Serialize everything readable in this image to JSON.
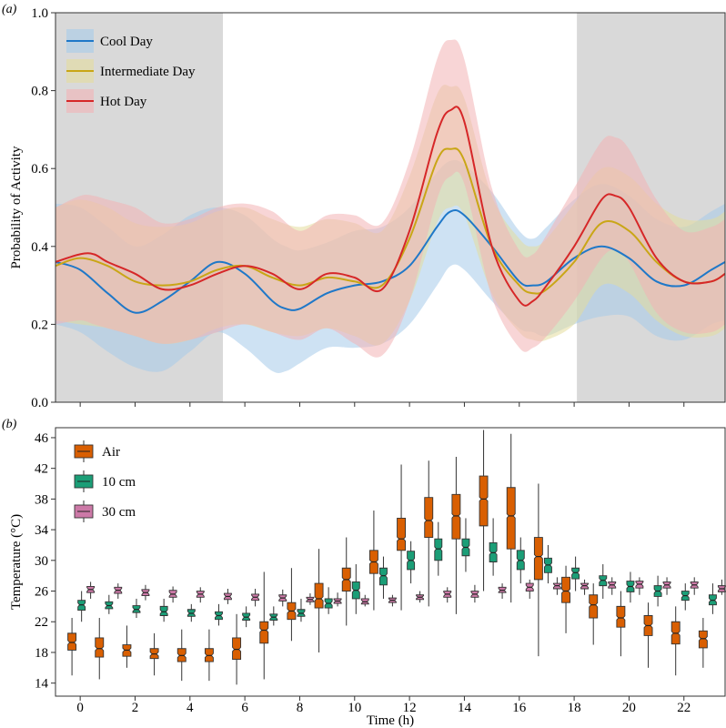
{
  "chart_data": [
    {
      "panel_label": "(a)",
      "type": "area",
      "title": "",
      "xlabel": "",
      "ylabel": "Probability of Activity",
      "xlim": [
        -0.9,
        23.5
      ],
      "ylim": [
        0,
        1.0
      ],
      "yticks": [
        0.0,
        0.2,
        0.4,
        0.6,
        0.8,
        1.0
      ],
      "ytick_labels": [
        "0.0",
        "0.2",
        "0.4",
        "0.6",
        "0.8",
        "1.0"
      ],
      "xticks": [
        0,
        2,
        4,
        6,
        8,
        10,
        12,
        14,
        16,
        18,
        20,
        22
      ],
      "night_shading": [
        [
          -0.9,
          5.2
        ],
        [
          18.1,
          23.5
        ]
      ],
      "night_color": "#d9d9d9",
      "legend_position": "top-left",
      "series": [
        {
          "name": "Cool Day",
          "color": "#1f78c8",
          "band_color": "#a6cbea",
          "x": [
            -0.9,
            0,
            1,
            2,
            3,
            4,
            5,
            6,
            7,
            7.5,
            8,
            9,
            10,
            11,
            12,
            13,
            13.5,
            14,
            15,
            16,
            16.5,
            17,
            18,
            19,
            20,
            21,
            22,
            23,
            23.5
          ],
          "mean": [
            0.36,
            0.34,
            0.28,
            0.23,
            0.26,
            0.31,
            0.36,
            0.33,
            0.26,
            0.24,
            0.24,
            0.28,
            0.3,
            0.31,
            0.35,
            0.45,
            0.49,
            0.48,
            0.4,
            0.31,
            0.3,
            0.31,
            0.37,
            0.4,
            0.37,
            0.31,
            0.3,
            0.34,
            0.36
          ],
          "lower": [
            0.2,
            0.18,
            0.13,
            0.09,
            0.08,
            0.13,
            0.18,
            0.14,
            0.08,
            0.08,
            0.1,
            0.14,
            0.14,
            0.15,
            0.2,
            0.3,
            0.35,
            0.34,
            0.26,
            0.19,
            0.18,
            0.17,
            0.2,
            0.22,
            0.22,
            0.17,
            0.16,
            0.2,
            0.21
          ],
          "upper": [
            0.51,
            0.5,
            0.45,
            0.4,
            0.43,
            0.48,
            0.5,
            0.48,
            0.42,
            0.4,
            0.39,
            0.41,
            0.44,
            0.45,
            0.5,
            0.59,
            0.62,
            0.61,
            0.54,
            0.44,
            0.42,
            0.45,
            0.52,
            0.56,
            0.53,
            0.47,
            0.45,
            0.49,
            0.51
          ]
        },
        {
          "name": "Intermediate Day",
          "color": "#c9a616",
          "band_color": "#e4dc9c",
          "x": [
            -0.9,
            0,
            1,
            2,
            3,
            4,
            5,
            6,
            7,
            8,
            9,
            10,
            11,
            12,
            13,
            13.5,
            14,
            15,
            16,
            16.5,
            17,
            18,
            19,
            20,
            21,
            22,
            23,
            23.5
          ],
          "mean": [
            0.35,
            0.37,
            0.35,
            0.31,
            0.3,
            0.31,
            0.34,
            0.35,
            0.32,
            0.3,
            0.32,
            0.31,
            0.3,
            0.42,
            0.62,
            0.65,
            0.62,
            0.4,
            0.3,
            0.28,
            0.29,
            0.36,
            0.46,
            0.44,
            0.36,
            0.31,
            0.31,
            0.33
          ],
          "lower": [
            0.21,
            0.2,
            0.19,
            0.17,
            0.15,
            0.16,
            0.19,
            0.2,
            0.18,
            0.17,
            0.19,
            0.17,
            0.15,
            0.26,
            0.46,
            0.5,
            0.48,
            0.28,
            0.18,
            0.16,
            0.16,
            0.2,
            0.3,
            0.28,
            0.21,
            0.17,
            0.17,
            0.19
          ],
          "upper": [
            0.5,
            0.52,
            0.5,
            0.46,
            0.45,
            0.46,
            0.49,
            0.5,
            0.47,
            0.45,
            0.47,
            0.46,
            0.44,
            0.58,
            0.79,
            0.81,
            0.78,
            0.53,
            0.42,
            0.4,
            0.42,
            0.51,
            0.6,
            0.58,
            0.51,
            0.47,
            0.47,
            0.49
          ]
        },
        {
          "name": "Hot Day",
          "color": "#d62728",
          "band_color": "#f2b3b5",
          "x": [
            -0.9,
            0,
            0.5,
            1,
            2,
            3,
            4,
            5,
            6,
            7,
            8,
            9,
            10,
            11,
            12,
            13,
            13.5,
            14,
            15,
            16,
            16.5,
            17,
            18,
            19,
            19.5,
            20,
            21,
            22,
            23,
            23.5
          ],
          "mean": [
            0.36,
            0.38,
            0.38,
            0.36,
            0.33,
            0.29,
            0.3,
            0.33,
            0.35,
            0.33,
            0.29,
            0.33,
            0.32,
            0.29,
            0.44,
            0.69,
            0.75,
            0.72,
            0.4,
            0.26,
            0.26,
            0.3,
            0.4,
            0.52,
            0.53,
            0.5,
            0.37,
            0.31,
            0.31,
            0.33
          ],
          "lower": [
            0.2,
            0.21,
            0.2,
            0.19,
            0.17,
            0.15,
            0.16,
            0.18,
            0.2,
            0.18,
            0.16,
            0.19,
            0.15,
            0.12,
            0.26,
            0.52,
            0.58,
            0.56,
            0.27,
            0.14,
            0.14,
            0.17,
            0.26,
            0.37,
            0.39,
            0.36,
            0.23,
            0.18,
            0.18,
            0.2
          ],
          "upper": [
            0.5,
            0.53,
            0.53,
            0.52,
            0.5,
            0.46,
            0.47,
            0.5,
            0.51,
            0.49,
            0.44,
            0.48,
            0.48,
            0.46,
            0.62,
            0.88,
            0.93,
            0.88,
            0.55,
            0.39,
            0.38,
            0.43,
            0.55,
            0.67,
            0.68,
            0.65,
            0.52,
            0.44,
            0.45,
            0.47
          ]
        }
      ]
    },
    {
      "panel_label": "(b)",
      "type": "boxplot",
      "title": "",
      "xlabel": "Time (h)",
      "ylabel": "Temperature (°C)",
      "xlim": [
        -0.9,
        23.5
      ],
      "ylim": [
        12.3,
        47.3
      ],
      "yticks": [
        14,
        18,
        22,
        26,
        30,
        34,
        38,
        42,
        46
      ],
      "ytick_labels": [
        "14",
        "18",
        "22",
        "26",
        "30",
        "34",
        "38",
        "42",
        "46"
      ],
      "xticks": [
        0,
        2,
        4,
        6,
        8,
        10,
        12,
        14,
        16,
        18,
        20,
        22
      ],
      "xtick_labels": [
        "0",
        "2",
        "4",
        "6",
        "8",
        "10",
        "12",
        "14",
        "16",
        "18",
        "20",
        "22"
      ],
      "legend_position": "top-left",
      "series": [
        {
          "name": "Air",
          "color": "#d95f02",
          "offset": -0.3,
          "hours": [
            0,
            1,
            2,
            3,
            4,
            5,
            6,
            7,
            8,
            9,
            10,
            11,
            12,
            13,
            14,
            15,
            16,
            17,
            18,
            19,
            20,
            21,
            22,
            23
          ],
          "stats": [
            [
              15.0,
              18.3,
              19.3,
              20.5,
              22.5
            ],
            [
              14.5,
              17.4,
              18.5,
              19.9,
              22.5
            ],
            [
              16.0,
              17.5,
              18.3,
              19.0,
              21.5
            ],
            [
              15.0,
              17.2,
              17.8,
              18.5,
              20.5
            ],
            [
              14.3,
              16.8,
              17.6,
              18.5,
              21.0
            ],
            [
              14.3,
              16.8,
              17.6,
              18.5,
              21.0
            ],
            [
              13.8,
              17.1,
              18.4,
              19.9,
              23.0
            ],
            [
              14.5,
              19.2,
              20.9,
              22.0,
              28.5
            ],
            [
              19.5,
              22.3,
              23.4,
              24.5,
              29.0
            ],
            [
              18.0,
              23.8,
              25.0,
              27.0,
              31.5
            ],
            [
              21.5,
              26.0,
              27.5,
              29.0,
              33.0
            ],
            [
              23.5,
              28.3,
              29.8,
              31.3,
              36.5
            ],
            [
              23.5,
              31.3,
              32.8,
              35.5,
              42.5
            ],
            [
              24.0,
              33.0,
              35.2,
              38.2,
              43.0
            ],
            [
              23.0,
              32.8,
              35.8,
              38.6,
              43.5
            ],
            [
              26.0,
              34.5,
              38.0,
              41.0,
              47.0
            ],
            [
              24.5,
              31.5,
              35.8,
              39.5,
              46.5
            ],
            [
              17.5,
              27.5,
              30.5,
              33.0,
              40.0
            ],
            [
              20.5,
              24.5,
              26.0,
              27.8,
              29.3
            ],
            [
              19.0,
              22.5,
              24.2,
              25.5,
              27.0
            ],
            [
              17.5,
              21.3,
              22.5,
              24.0,
              26.0
            ],
            [
              16.0,
              20.2,
              21.5,
              22.8,
              24.5
            ],
            [
              15.0,
              19.1,
              20.5,
              22.0,
              24.0
            ],
            [
              16.0,
              18.6,
              19.8,
              20.8,
              22.5
            ]
          ]
        },
        {
          "name": "10 cm",
          "color": "#1b9e77",
          "offset": 0.05,
          "hours": [
            0,
            1,
            2,
            3,
            4,
            5,
            6,
            7,
            8,
            9,
            10,
            11,
            12,
            13,
            14,
            15,
            16,
            17,
            18,
            19,
            20,
            21,
            22,
            23
          ],
          "stats": [
            [
              22.0,
              23.5,
              24.2,
              24.8,
              26.0
            ],
            [
              23.0,
              23.7,
              24.1,
              24.6,
              25.5
            ],
            [
              22.5,
              23.2,
              23.6,
              24.1,
              25.0
            ],
            [
              22.0,
              22.8,
              23.3,
              24.0,
              25.0
            ],
            [
              22.0,
              22.7,
              23.1,
              23.6,
              24.3
            ],
            [
              21.5,
              22.3,
              22.8,
              23.3,
              24.3
            ],
            [
              21.3,
              22.2,
              22.6,
              23.1,
              24.0
            ],
            [
              21.5,
              22.2,
              22.6,
              23.0,
              24.0
            ],
            [
              22.0,
              22.7,
              23.1,
              23.6,
              25.0
            ],
            [
              23.0,
              23.8,
              24.4,
              25.0,
              26.5
            ],
            [
              23.0,
              25.0,
              26.1,
              27.2,
              29.5
            ],
            [
              25.0,
              26.8,
              28.0,
              29.0,
              30.5
            ],
            [
              27.0,
              28.8,
              30.0,
              31.2,
              32.5
            ],
            [
              28.0,
              30.0,
              31.5,
              32.8,
              35.0
            ],
            [
              28.5,
              30.6,
              31.7,
              32.8,
              35.5
            ],
            [
              28.0,
              29.8,
              31.0,
              32.3,
              35.5
            ],
            [
              27.0,
              28.8,
              30.0,
              31.3,
              33.0
            ],
            [
              27.0,
              28.4,
              29.4,
              30.3,
              32.0
            ],
            [
              26.0,
              27.6,
              28.4,
              29.0,
              30.5
            ],
            [
              25.0,
              26.7,
              27.4,
              28.0,
              29.5
            ],
            [
              24.5,
              25.9,
              26.6,
              27.3,
              28.5
            ],
            [
              24.0,
              25.3,
              26.0,
              26.7,
              28.0
            ],
            [
              23.5,
              24.8,
              25.4,
              26.0,
              27.0
            ],
            [
              23.0,
              24.2,
              24.8,
              25.5,
              27.0
            ]
          ]
        },
        {
          "name": "30 cm",
          "color": "#cc79a7",
          "offset": 0.38,
          "hours": [
            0,
            1,
            2,
            3,
            4,
            5,
            6,
            7,
            8,
            9,
            10,
            11,
            12,
            13,
            14,
            15,
            16,
            17,
            18,
            19,
            20,
            21,
            22,
            23
          ],
          "stats": [
            [
              25.0,
              25.8,
              26.2,
              26.6,
              27.2
            ],
            [
              25.0,
              25.7,
              26.1,
              26.5,
              27.0
            ],
            [
              24.8,
              25.4,
              25.8,
              26.2,
              26.8
            ],
            [
              24.5,
              25.2,
              25.6,
              26.1,
              26.6
            ],
            [
              24.5,
              25.2,
              25.6,
              26.0,
              26.5
            ],
            [
              24.3,
              24.9,
              25.3,
              25.7,
              26.3
            ],
            [
              24.0,
              24.8,
              25.2,
              25.6,
              26.3
            ],
            [
              24.0,
              24.7,
              25.1,
              25.5,
              26.2
            ],
            [
              24.2,
              24.6,
              24.9,
              25.2,
              25.7
            ],
            [
              24.0,
              24.4,
              24.7,
              25.0,
              25.8
            ],
            [
              24.0,
              24.3,
              24.6,
              25.0,
              25.5
            ],
            [
              24.0,
              24.5,
              24.8,
              25.1,
              25.5
            ],
            [
              24.5,
              24.9,
              25.2,
              25.5,
              26.0
            ],
            [
              24.5,
              25.2,
              25.6,
              26.0,
              26.5
            ],
            [
              24.5,
              25.2,
              25.6,
              26.0,
              26.8
            ],
            [
              25.0,
              25.8,
              26.1,
              26.5,
              27.0
            ],
            [
              25.0,
              26.0,
              26.5,
              27.0,
              27.5
            ],
            [
              25.5,
              26.3,
              26.7,
              27.0,
              27.8
            ],
            [
              25.5,
              26.3,
              26.7,
              27.0,
              27.5
            ],
            [
              25.5,
              26.4,
              26.8,
              27.2,
              27.8
            ],
            [
              25.5,
              26.4,
              26.9,
              27.3,
              27.8
            ],
            [
              25.5,
              26.4,
              26.8,
              27.2,
              27.8
            ],
            [
              25.5,
              26.4,
              26.8,
              27.2,
              27.8
            ],
            [
              25.5,
              25.9,
              26.3,
              26.7,
              27.5
            ]
          ]
        }
      ]
    }
  ]
}
